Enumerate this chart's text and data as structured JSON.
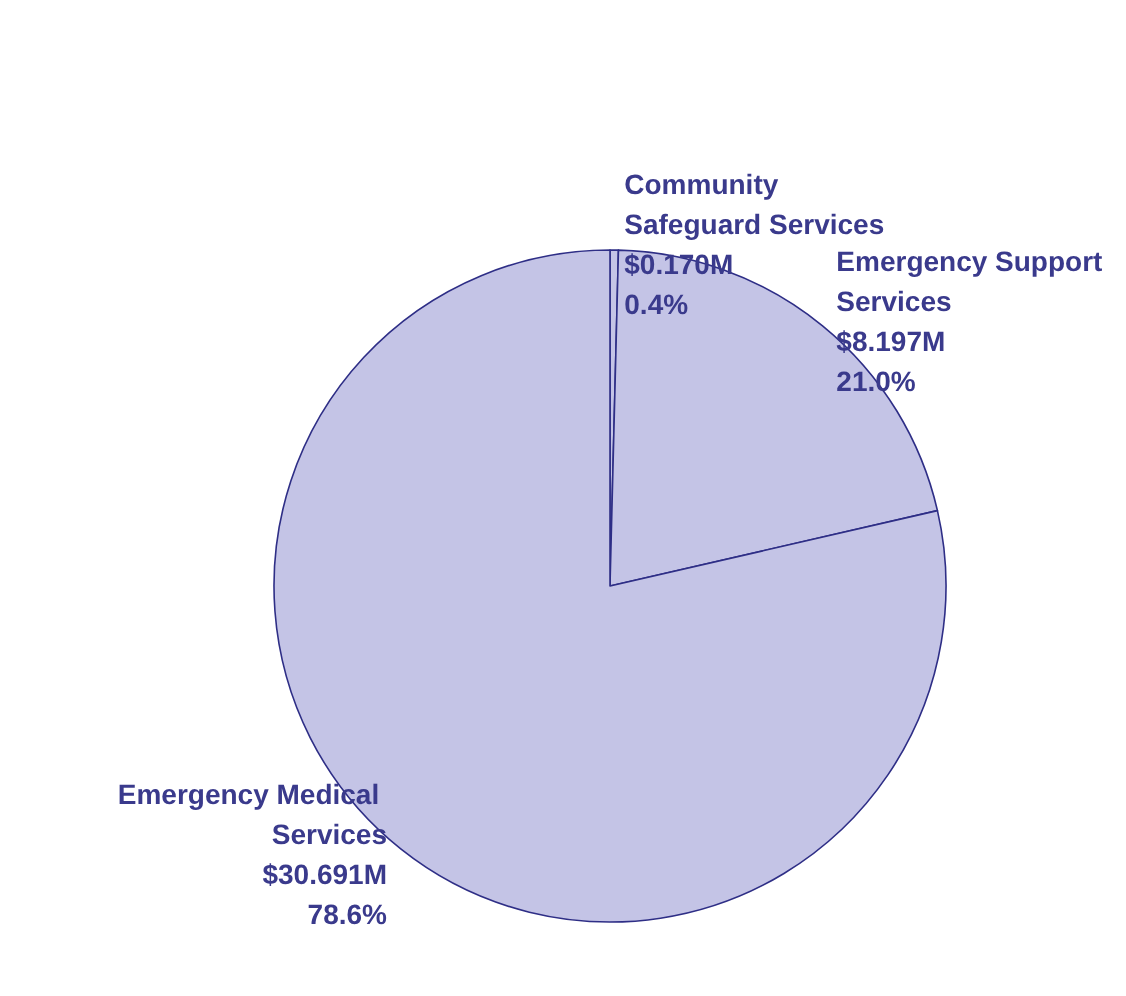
{
  "chart_data": {
    "type": "pie",
    "categories": [
      "Community Safeguard Services",
      "Emergency Support Services",
      "Emergency Medical Services"
    ],
    "values": [
      0.4,
      21.0,
      78.6
    ],
    "value_labels": [
      "$0.170M\n0.4%",
      "$8.197M\n21.0%",
      "$30.691M\n78.6%"
    ],
    "colors": [
      "#c4c4e6",
      "#c4c4e6",
      "#c4c4e6"
    ],
    "legend": false
  }
}
